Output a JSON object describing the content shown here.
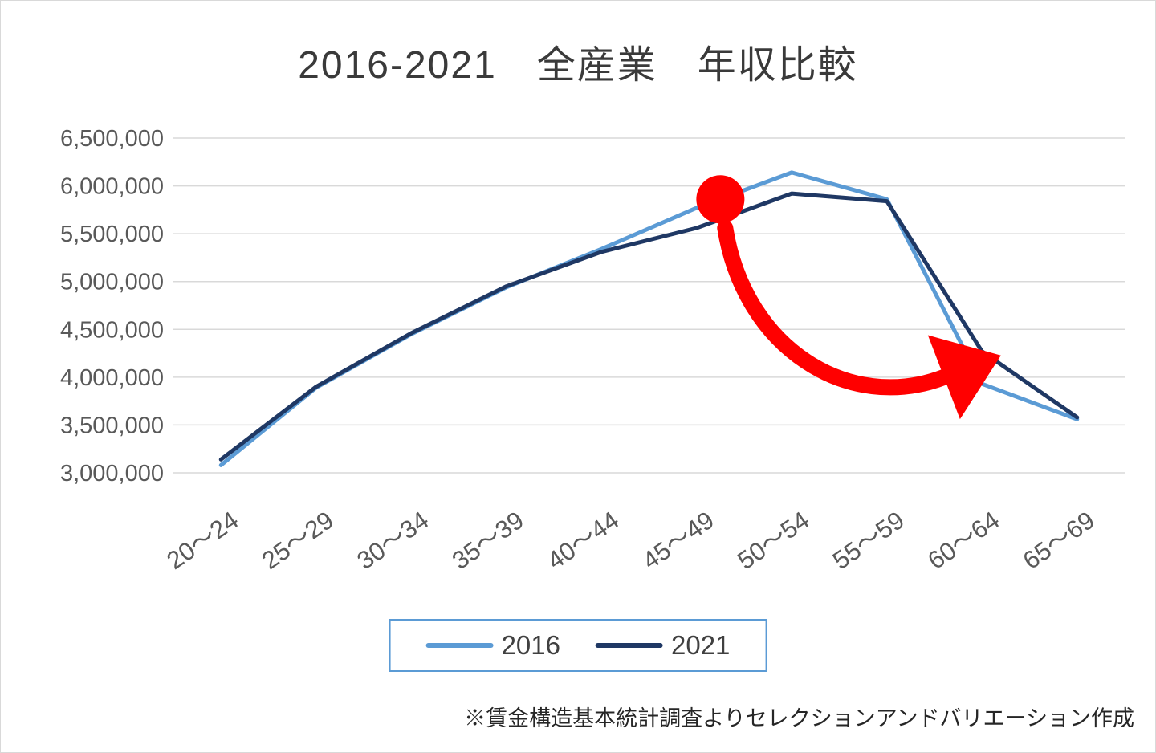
{
  "title": "2016-2021　全産業　年収比較",
  "footer_note": "※賃金構造基本統計調査よりセレクションアンドバリエーション作成",
  "legend": {
    "items": [
      {
        "label": "2016",
        "color": "#5B9BD5"
      },
      {
        "label": "2021",
        "color": "#1F3864"
      }
    ]
  },
  "chart_data": {
    "type": "line",
    "title": "2016-2021　全産業　年収比較",
    "xlabel": "",
    "ylabel": "",
    "categories": [
      "20～24",
      "25～29",
      "30～34",
      "35～39",
      "40～44",
      "45～49",
      "50～54",
      "55～59",
      "60～64",
      "65～69"
    ],
    "series": [
      {
        "name": "2016",
        "color": "#5B9BD5",
        "values": [
          3080000,
          3890000,
          4450000,
          4940000,
          5340000,
          5770000,
          6140000,
          5860000,
          3930000,
          3560000
        ]
      },
      {
        "name": "2021",
        "color": "#1F3864",
        "values": [
          3140000,
          3900000,
          4460000,
          4950000,
          5310000,
          5560000,
          5920000,
          5840000,
          4270000,
          3580000
        ]
      }
    ],
    "ylim": [
      3000000,
      6500000
    ],
    "ytick_step": 500000,
    "grid": true,
    "gridline_color": "#d9d9d9",
    "tick_label_color": "#595959",
    "legend_position": "bottom",
    "annotations": [
      {
        "type": "circle",
        "color": "#FF0000",
        "x_index": 5.25,
        "value": 5860000,
        "radius": 30
      },
      {
        "type": "curved-arrow",
        "color": "#FF0000",
        "from": {
          "x_index": 5.3,
          "value": 5560000
        },
        "c1": {
          "x_index": 5.5,
          "value": 4300000
        },
        "c2": {
          "x_index": 6.6,
          "value": 3620000
        },
        "to": {
          "x_index": 7.6,
          "value": 4000000
        }
      }
    ]
  }
}
